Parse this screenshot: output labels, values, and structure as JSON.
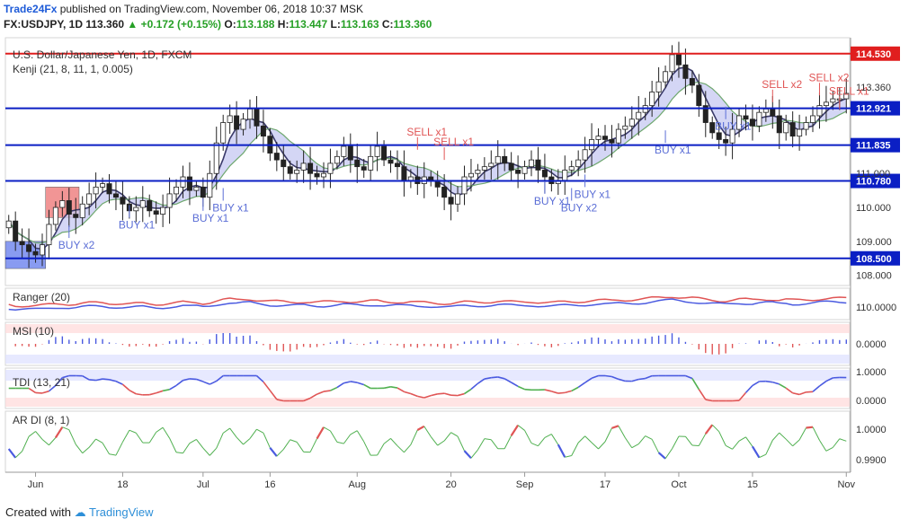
{
  "header": {
    "author": "Trade24Fx",
    "published": " published on TradingView.com, November 06, 2018 10:37 MSK",
    "symbol": "FX:USDJPY, 1D",
    "last": " 113.360 ",
    "change": "▲ +0.172 (+0.15%) ",
    "o_label": "O:",
    "o": "113.188",
    "h_label": " H:",
    "h": "113.447",
    "l_label": " L:",
    "l": "113.163",
    "c_label": " C:",
    "c": "113.360"
  },
  "footer": {
    "created_with": "Created with",
    "tradingview": "TradingView"
  },
  "colors": {
    "bull": "#ffffff",
    "bear": "#222222",
    "level": "#0b1fc4",
    "resist": "#e01e1e",
    "buy": "#5b6ed6",
    "sell": "#e05555",
    "ribbon": "#c9ccf2"
  },
  "chart_data": [
    {
      "type": "candlestick",
      "title": "U.S. Dollar/Japanese Yen, 1D, FXCM",
      "indicator": "Kenji (21, 8, 11, 1, 0.005)",
      "ylim": [
        107.7,
        115.0
      ],
      "yticks": [
        108.0,
        109.0,
        110.0,
        111.0,
        113.36
      ],
      "ytick_labels": [
        "108.000",
        "109.000",
        "110.000",
        "111.000",
        "113.360"
      ],
      "x_tick_labels": [
        "Jun",
        "18",
        "Jul",
        "16",
        "Aug",
        "20",
        "Sep",
        "17",
        "Oct",
        "15",
        "Nov"
      ],
      "x_tick_index": [
        4,
        17,
        29,
        39,
        52,
        66,
        77,
        89,
        100,
        111,
        125
      ],
      "levels": [
        {
          "value": 114.53,
          "label": "114.530",
          "color": "#e01e1e"
        },
        {
          "value": 112.921,
          "label": "112.921",
          "color": "#0b1fc4"
        },
        {
          "value": 111.835,
          "label": "111.835",
          "color": "#0b1fc4"
        },
        {
          "value": 110.78,
          "label": "110.780",
          "color": "#0b1fc4"
        },
        {
          "value": 108.5,
          "label": "108.500",
          "color": "#0b1fc4"
        }
      ],
      "current_price": {
        "value": 113.36,
        "label": "113.360"
      },
      "zones": [
        {
          "from": 0,
          "to": 6,
          "low": 108.2,
          "high": 109.0,
          "color": "#6b82ee"
        },
        {
          "from": 6,
          "to": 11,
          "low": 109.7,
          "high": 110.6,
          "color": "#ee7a7a"
        }
      ],
      "signals": [
        {
          "index": 9,
          "text": "BUY x2",
          "kind": "buy",
          "price": 109.1
        },
        {
          "index": 18,
          "text": "BUY x1",
          "kind": "buy",
          "price": 109.7
        },
        {
          "index": 29,
          "text": "BUY x1",
          "kind": "buy",
          "price": 109.9
        },
        {
          "index": 32,
          "text": "BUY x1",
          "kind": "buy",
          "price": 110.2
        },
        {
          "index": 61,
          "text": "SELL x1",
          "kind": "sell",
          "price": 111.7
        },
        {
          "index": 65,
          "text": "SELL x1",
          "kind": "sell",
          "price": 111.4
        },
        {
          "index": 80,
          "text": "BUY x1",
          "kind": "buy",
          "price": 110.4
        },
        {
          "index": 84,
          "text": "BUY x2",
          "kind": "buy",
          "price": 110.2
        },
        {
          "index": 86,
          "text": "BUY x1",
          "kind": "buy",
          "price": 110.6
        },
        {
          "index": 98,
          "text": "BUY x1",
          "kind": "buy",
          "price": 111.9
        },
        {
          "index": 107,
          "text": "BUY x1",
          "kind": "buy",
          "price": 112.6
        },
        {
          "index": 114,
          "text": "SELL x2",
          "kind": "sell",
          "price": 113.1
        },
        {
          "index": 121,
          "text": "SELL x2",
          "kind": "sell",
          "price": 113.3
        },
        {
          "index": 124,
          "text": "SELL x1",
          "kind": "sell",
          "price": 112.9
        }
      ],
      "closes": [
        109.6,
        109.0,
        108.9,
        108.7,
        108.6,
        108.9,
        109.5,
        110.0,
        110.2,
        109.8,
        109.7,
        110.1,
        110.4,
        110.6,
        110.7,
        110.4,
        110.3,
        110.1,
        109.9,
        110.0,
        110.2,
        109.9,
        109.8,
        110.0,
        110.4,
        110.6,
        110.9,
        110.5,
        110.6,
        110.3,
        111.0,
        111.9,
        112.5,
        112.7,
        112.3,
        112.6,
        112.9,
        112.4,
        112.1,
        111.6,
        111.4,
        111.2,
        111.0,
        111.1,
        111.3,
        111.0,
        110.9,
        111.0,
        111.3,
        111.5,
        111.8,
        111.4,
        111.2,
        111.1,
        111.5,
        111.8,
        111.4,
        111.3,
        111.2,
        110.8,
        110.9,
        110.7,
        110.9,
        110.8,
        110.6,
        110.3,
        110.1,
        110.4,
        110.9,
        111.0,
        111.1,
        111.2,
        111.3,
        111.5,
        111.3,
        111.1,
        111.0,
        111.2,
        111.4,
        111.1,
        110.9,
        110.7,
        110.8,
        111.1,
        111.2,
        111.4,
        111.7,
        112.0,
        112.1,
        112.0,
        111.9,
        112.3,
        112.4,
        112.6,
        112.8,
        113.0,
        113.4,
        113.7,
        114.0,
        114.5,
        114.2,
        113.8,
        113.6,
        113.0,
        112.5,
        112.2,
        112.0,
        111.9,
        112.3,
        112.7,
        112.6,
        112.4,
        112.8,
        112.9,
        112.7,
        112.2,
        112.5,
        112.1,
        112.3,
        112.5,
        112.7,
        113.0,
        113.1,
        113.2,
        113.2,
        113.36
      ],
      "indicators": [
        {
          "name": "Ranger (20)",
          "ylabel": "110.0000"
        },
        {
          "name": "MSI (10)",
          "ylabel": "0.0000"
        },
        {
          "name": "TDI (13, 21)",
          "ylabels": [
            "1.0000",
            "0.0000"
          ]
        },
        {
          "name": "AR DI (8, 1)",
          "ylabels": [
            "1.0000",
            "0.9900"
          ]
        }
      ]
    }
  ]
}
